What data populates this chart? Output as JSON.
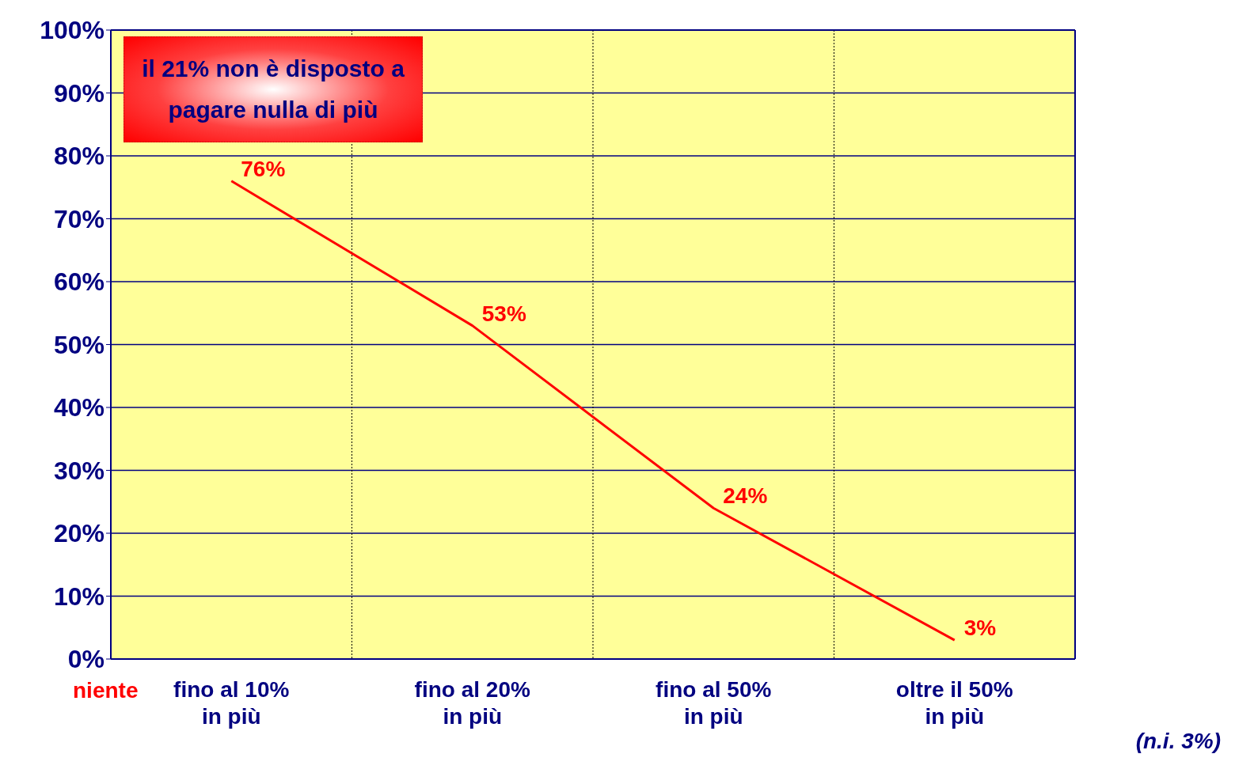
{
  "chart_data": {
    "type": "line",
    "categories": [
      "fino al 10%\nin più",
      "fino al 20%\nin più",
      "fino al 50%\nin più",
      "oltre il 50%\nin più"
    ],
    "values": [
      76,
      53,
      24,
      3
    ],
    "value_labels": [
      "76%",
      "53%",
      "24%",
      "3%"
    ],
    "color": "#ff0000",
    "marker": "none",
    "line_style": "solid",
    "grid": true,
    "ylim": [
      0,
      100
    ],
    "yticks": [
      {
        "value": 0,
        "label": "0%"
      },
      {
        "value": 10,
        "label": "10%"
      },
      {
        "value": 20,
        "label": "20%"
      },
      {
        "value": 30,
        "label": "30%"
      },
      {
        "value": 40,
        "label": "40%"
      },
      {
        "value": 50,
        "label": "50%"
      },
      {
        "value": 60,
        "label": "60%"
      },
      {
        "value": 70,
        "label": "70%"
      },
      {
        "value": 80,
        "label": "80%"
      },
      {
        "value": 90,
        "label": "90%"
      },
      {
        "value": 100,
        "label": "100%"
      }
    ],
    "annotations": [
      "il 21% non è disposto a pagare nulla di più",
      "niente",
      "(n.i. 3%)"
    ]
  }
}
